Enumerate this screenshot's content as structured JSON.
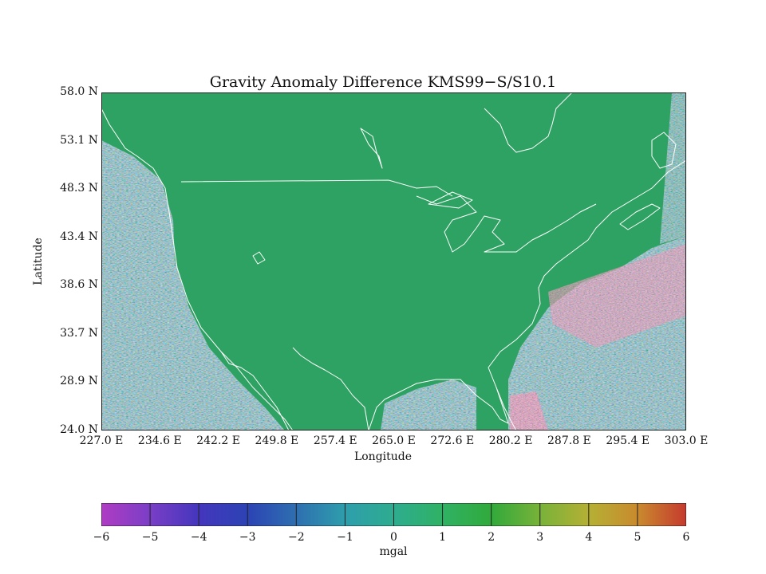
{
  "title": "Gravity Anomaly Difference KMS99−S/S10.1",
  "axes": {
    "xlabel": "Longitude",
    "ylabel": "Latitude",
    "x_ticks": [
      "227.0 E",
      "234.6 E",
      "242.2 E",
      "249.8 E",
      "257.4 E",
      "265.0 E",
      "272.6 E",
      "280.2 E",
      "287.8 E",
      "295.4 E",
      "303.0 E"
    ],
    "y_ticks": [
      "58.0 N",
      "53.1 N",
      "48.3 N",
      "43.4 N",
      "38.6 N",
      "33.7 N",
      "28.9 N",
      "24.0 N"
    ]
  },
  "colorbar": {
    "unit": "mgal",
    "ticks": [
      "−6",
      "−5",
      "−4",
      "−3",
      "−2",
      "−1",
      "0",
      "1",
      "2",
      "3",
      "4",
      "5",
      "6"
    ],
    "colors": [
      "#b03cc4",
      "#7a3ec6",
      "#4436bd",
      "#2c43b4",
      "#2e6fb0",
      "#2e9eac",
      "#2eac8f",
      "#2fb265",
      "#31a93b",
      "#78b23a",
      "#b5b034",
      "#c98a2e",
      "#c53a2e"
    ]
  },
  "map": {
    "land_color": "#2ea262",
    "coast_color": "#ffffff",
    "lon_range": [
      227.0,
      303.0
    ],
    "lat_range": [
      24.0,
      58.0
    ]
  }
}
